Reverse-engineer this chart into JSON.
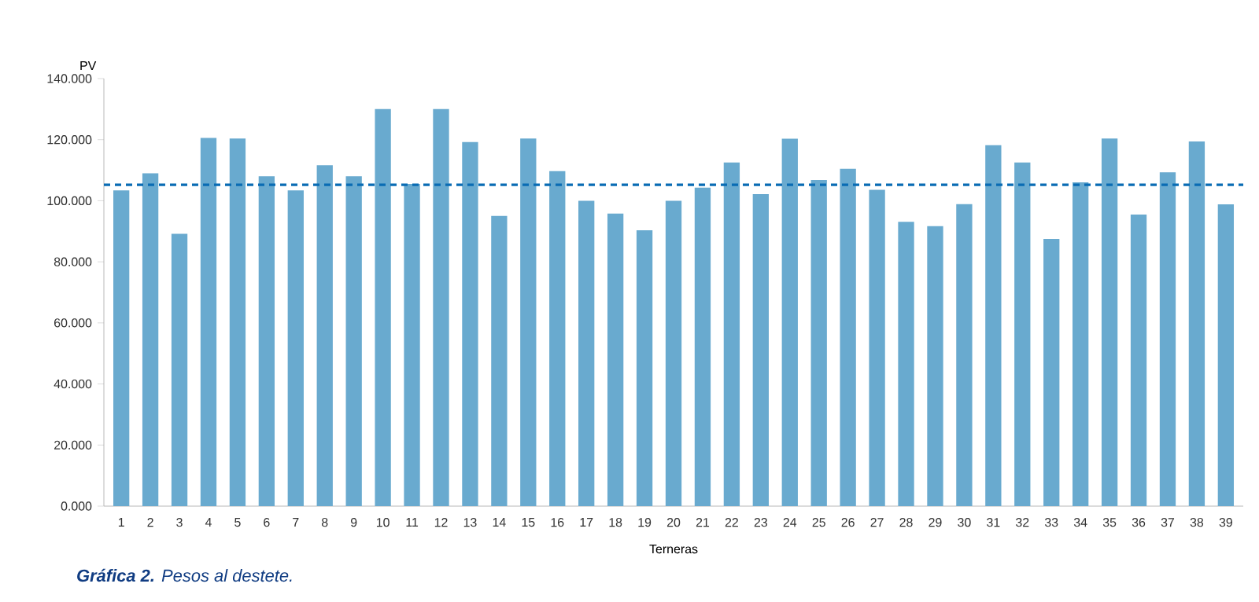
{
  "chart_data": {
    "type": "bar",
    "ylabel": "PV",
    "xlabel": "Terneras",
    "annotations": [
      "**Gráfica 2.** Pesos al destete."
    ],
    "categories": [
      "1",
      "2",
      "3",
      "4",
      "5",
      "6",
      "7",
      "8",
      "9",
      "10",
      "11",
      "12",
      "13",
      "14",
      "15",
      "16",
      "17",
      "18",
      "19",
      "20",
      "21",
      "22",
      "23",
      "24",
      "25",
      "26",
      "27",
      "28",
      "29",
      "30",
      "31",
      "32",
      "33",
      "34",
      "35",
      "36",
      "37",
      "38",
      "39"
    ],
    "values": [
      103.4,
      109,
      89.2,
      120.6,
      120.4,
      108,
      103.4,
      111.6,
      108,
      130,
      105.5,
      130,
      119.2,
      95,
      120.4,
      109.7,
      100,
      95.8,
      90.3,
      100,
      104.3,
      112.5,
      102.2,
      120.3,
      106.8,
      110.5,
      103.6,
      93.1,
      91.7,
      98.9,
      118.2,
      112.5,
      87.5,
      106,
      120.4,
      95.5,
      109.3,
      119.4,
      98.8
    ],
    "color": "#69aacf",
    "ylim": [
      0,
      140
    ],
    "yticks": [
      {
        "value": 0,
        "label": "0.000"
      },
      {
        "value": 20,
        "label": "20.000"
      },
      {
        "value": 40,
        "label": "40.000"
      },
      {
        "value": 60,
        "label": "60.000"
      },
      {
        "value": 80,
        "label": "80.000"
      },
      {
        "value": 100,
        "label": "100.000"
      },
      {
        "value": 120,
        "label": "120.000"
      },
      {
        "value": 140,
        "label": "140.000"
      }
    ],
    "ref_lines": [
      {
        "axis": "y",
        "value": 105.2,
        "color": "#0a6cb4",
        "line_style": "dashed"
      }
    ],
    "grid": false
  }
}
